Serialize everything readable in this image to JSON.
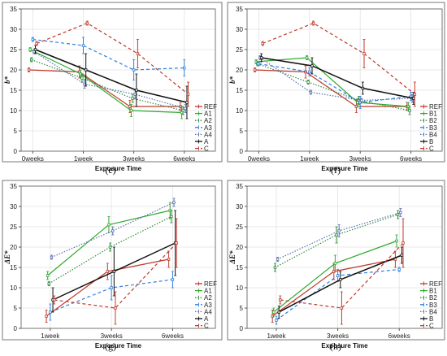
{
  "colors": {
    "REF": "#c0392b",
    "A1": "#2eaa2e",
    "A2": "#2e8b3a",
    "A3": "#2f7fe0",
    "A4": "#5a6fb0",
    "A": "#111111",
    "C": "#c0392b",
    "B1": "#2eaa2e",
    "B2": "#2e8b3a",
    "B3": "#2f7fe0",
    "B4": "#5a6fb0",
    "B": "#111111"
  },
  "chart_data": [
    {
      "panel": "(e)",
      "type": "line",
      "xlabel": "Exposure Time",
      "ylabel": "b*",
      "categories": [
        "0weeks",
        "1week",
        "3weeks",
        "6weeks"
      ],
      "ylim": [
        0,
        35
      ],
      "yticks": [
        0,
        5,
        10,
        15,
        20,
        25,
        30,
        35
      ],
      "series": [
        {
          "name": "REF",
          "style": "solid",
          "values": [
            20,
            19.5,
            11,
            11
          ],
          "err": [
            0.5,
            1.5,
            1.5,
            1
          ]
        },
        {
          "name": "A1",
          "style": "solid",
          "values": [
            25,
            19,
            10,
            9.5
          ],
          "err": [
            0.5,
            1,
            1.5,
            1.5
          ]
        },
        {
          "name": "A2",
          "style": "dotted",
          "values": [
            22.5,
            18,
            13,
            10
          ],
          "err": [
            0.5,
            1,
            1,
            1
          ]
        },
        {
          "name": "A3",
          "style": "dashed",
          "values": [
            27.5,
            26,
            20,
            20.5
          ],
          "err": [
            0.5,
            2,
            2.5,
            2
          ]
        },
        {
          "name": "A4",
          "style": "dotted",
          "values": [
            24.5,
            16.5,
            14,
            10.5
          ],
          "err": [
            0.5,
            1,
            1,
            1
          ]
        },
        {
          "name": "A",
          "style": "solid",
          "values": [
            25,
            20,
            15,
            12
          ],
          "err": [
            1,
            4,
            4,
            4
          ]
        },
        {
          "name": "C",
          "style": "dashed",
          "values": [
            26.5,
            31.5,
            24,
            14
          ],
          "err": [
            0.5,
            0.5,
            3.5,
            3
          ]
        }
      ],
      "legend": [
        "REF",
        "A1",
        "A2",
        "A3",
        "A4",
        "A",
        "C"
      ]
    },
    {
      "panel": "(f)",
      "type": "line",
      "xlabel": "Exposure Time",
      "ylabel": "b*",
      "categories": [
        "0weeks",
        "1week",
        "3weeks",
        "6weeks"
      ],
      "ylim": [
        0,
        35
      ],
      "yticks": [
        0,
        5,
        10,
        15,
        20,
        25,
        30,
        35
      ],
      "series": [
        {
          "name": "REF",
          "style": "solid",
          "values": [
            20,
            19.5,
            11,
            11
          ],
          "err": [
            0.5,
            1.5,
            1.5,
            1
          ]
        },
        {
          "name": "B1",
          "style": "solid",
          "values": [
            22,
            23,
            12,
            11
          ],
          "err": [
            0.5,
            0.5,
            1,
            1
          ]
        },
        {
          "name": "B2",
          "style": "dotted",
          "values": [
            21.5,
            17,
            12.5,
            10
          ],
          "err": [
            0.5,
            0.5,
            1,
            1
          ]
        },
        {
          "name": "B3",
          "style": "dashed",
          "values": [
            21.5,
            19.5,
            12,
            13.5
          ],
          "err": [
            0.5,
            1,
            1.5,
            1
          ]
        },
        {
          "name": "B4",
          "style": "dotted",
          "values": [
            23,
            14.5,
            12.5,
            13
          ],
          "err": [
            0.5,
            0.5,
            0.5,
            1
          ]
        },
        {
          "name": "B",
          "style": "solid",
          "values": [
            23,
            21,
            15.5,
            13
          ],
          "err": [
            1,
            2,
            1.5,
            1.5
          ]
        },
        {
          "name": "C",
          "style": "dashed",
          "values": [
            26.5,
            31.5,
            24,
            14
          ],
          "err": [
            0.5,
            0.5,
            3.5,
            3
          ]
        }
      ],
      "legend": [
        "REF",
        "B1",
        "B2",
        "B3",
        "B4",
        "B",
        "C"
      ]
    },
    {
      "panel": "(g)",
      "type": "line",
      "xlabel": "Exposure Time",
      "ylabel": "ΔE*",
      "categories": [
        "1week",
        "3weeks",
        "6weeks"
      ],
      "ylim": [
        0,
        35
      ],
      "yticks": [
        0,
        5,
        10,
        15,
        20,
        25,
        30,
        35
      ],
      "series": [
        {
          "name": "REF",
          "style": "solid",
          "values": [
            3,
            14,
            17
          ],
          "err": [
            1.5,
            2,
            2
          ]
        },
        {
          "name": "A1",
          "style": "solid",
          "values": [
            13,
            25.5,
            29
          ],
          "err": [
            1,
            2,
            2
          ]
        },
        {
          "name": "A2",
          "style": "dotted",
          "values": [
            11,
            20,
            27.5
          ],
          "err": [
            0.5,
            1,
            1.5
          ]
        },
        {
          "name": "A3",
          "style": "dashed",
          "values": [
            4,
            10,
            12
          ],
          "err": [
            2,
            3,
            2
          ]
        },
        {
          "name": "A4",
          "style": "dotted",
          "values": [
            17.5,
            24,
            31
          ],
          "err": [
            0.5,
            1,
            1
          ]
        },
        {
          "name": "A",
          "style": "solid",
          "values": [
            7,
            14,
            21
          ],
          "err": [
            3,
            6,
            8
          ]
        },
        {
          "name": "C",
          "style": "dashed",
          "values": [
            7,
            5,
            21
          ],
          "err": [
            1,
            4,
            6
          ]
        }
      ],
      "legend": [
        "REF",
        "A1",
        "A2",
        "A3",
        "A4",
        "A",
        "C"
      ]
    },
    {
      "panel": "(h)",
      "type": "line",
      "xlabel": "Exposure Time",
      "ylabel": "ΔE*",
      "categories": [
        "1week",
        "3weeks",
        "6weeks"
      ],
      "ylim": [
        0,
        35
      ],
      "yticks": [
        0,
        5,
        10,
        15,
        20,
        25,
        30,
        35
      ],
      "series": [
        {
          "name": "REF",
          "style": "solid",
          "values": [
            3,
            14,
            17
          ],
          "err": [
            1.5,
            2,
            2
          ]
        },
        {
          "name": "B1",
          "style": "solid",
          "values": [
            4,
            16,
            21.5
          ],
          "err": [
            1,
            2,
            1.5
          ]
        },
        {
          "name": "B2",
          "style": "dotted",
          "values": [
            15,
            23,
            28
          ],
          "err": [
            1,
            2,
            1
          ]
        },
        {
          "name": "B3",
          "style": "dashed",
          "values": [
            2,
            13,
            14.5
          ],
          "err": [
            1,
            1.5,
            0.5
          ]
        },
        {
          "name": "B4",
          "style": "dotted",
          "values": [
            17,
            24,
            28.5
          ],
          "err": [
            0.5,
            1.5,
            1
          ]
        },
        {
          "name": "B",
          "style": "solid",
          "values": [
            4,
            12,
            18
          ],
          "err": [
            1.5,
            2,
            2
          ]
        },
        {
          "name": "C",
          "style": "dashed",
          "values": [
            7,
            5,
            21
          ],
          "err": [
            1,
            4,
            6
          ]
        }
      ],
      "legend": [
        "REF",
        "B1",
        "B2",
        "B3",
        "B4",
        "B",
        "C"
      ]
    }
  ]
}
